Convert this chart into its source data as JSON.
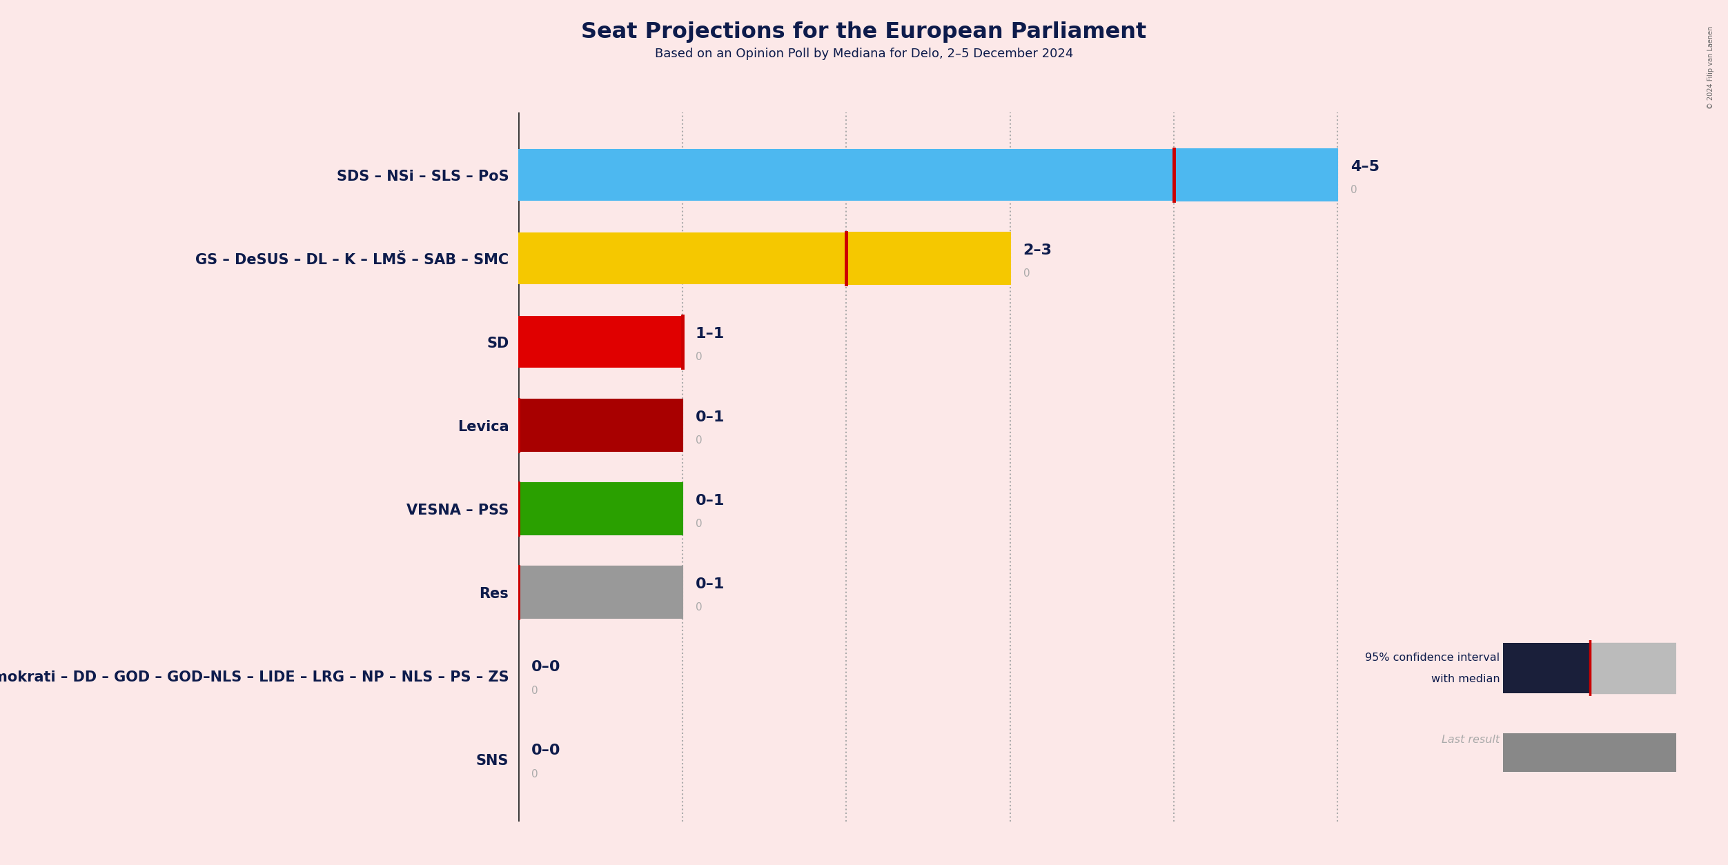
{
  "title": "Seat Projections for the European Parliament",
  "subtitle": "Based on an Opinion Poll by Mediana for Delo, 2–5 December 2024",
  "background_color": "#fce8e8",
  "parties": [
    "SDS – NSi – SLS – PoS",
    "GS – DeSUS – DL – K – LMŠ – SAB – SMC",
    "SD",
    "Levica",
    "VESNA – PSS",
    "Res",
    "ND – Demokrati – DD – GOD – GOD–NLS – LIDE – LRG – NP – NLS – PS – ZS",
    "SNS"
  ],
  "solid_values": [
    4,
    2,
    1,
    0,
    0,
    0,
    0,
    0
  ],
  "hatch_values": [
    1,
    1,
    0,
    1,
    1,
    1,
    0,
    0
  ],
  "median_at": [
    4,
    2,
    1,
    0,
    0,
    0,
    0,
    0
  ],
  "labels": [
    "4–5",
    "2–3",
    "1–1",
    "0–1",
    "0–1",
    "0–1",
    "0–0",
    "0–0"
  ],
  "bar_colors": [
    "#4db8f0",
    "#f5c800",
    "#e00000",
    "#a80000",
    "#2aa000",
    "#999999",
    null,
    null
  ],
  "hatch_styles": [
    "xxx",
    "///",
    null,
    "///",
    "xxx",
    "///",
    null,
    null
  ],
  "median_line_color": "#cc0000",
  "dotted_line_color": "#aaaaaa",
  "text_color": "#0d1b4b",
  "gray_text_color": "#aaaaaa",
  "copyright_text": "© 2024 Filip van Laenen",
  "legend_dark_color": "#1a1f3a",
  "legend_hatch_color": "#bbbbbb",
  "xlim_max": 5.8,
  "bar_height": 0.62
}
